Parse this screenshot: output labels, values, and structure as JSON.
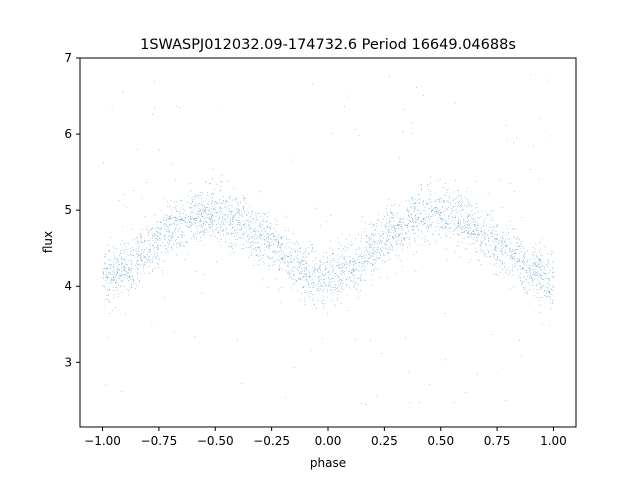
{
  "chart_data": {
    "type": "scatter",
    "title": "1SWASPJ012032.09-174732.6 Period 16649.04688s",
    "xlabel": "phase",
    "ylabel": "flux",
    "xlim": [
      -1.1,
      1.1
    ],
    "ylim": [
      2.15,
      7.0
    ],
    "xticks": [
      -1.0,
      -0.75,
      -0.5,
      -0.25,
      0.0,
      0.25,
      0.5,
      0.75,
      1.0
    ],
    "xtick_labels": [
      "−1.00",
      "−0.75",
      "−0.50",
      "−0.25",
      "0.00",
      "0.25",
      "0.50",
      "0.75",
      "1.00"
    ],
    "yticks": [
      3,
      4,
      5,
      6,
      7
    ],
    "ytick_labels": [
      "3",
      "4",
      "5",
      "6",
      "7"
    ],
    "grid": false,
    "legend": "none",
    "point_color": "#1f77b4",
    "series": [
      {
        "x_range": [
          -1.0,
          1.0
        ],
        "profile": {
          "phase": [
            -1.0,
            -0.9,
            -0.8,
            -0.7,
            -0.6,
            -0.5,
            -0.4,
            -0.3,
            -0.2,
            -0.1,
            0.0,
            0.1,
            0.2,
            0.3,
            0.4,
            0.5,
            0.6,
            0.7,
            0.8,
            0.9,
            1.0
          ],
          "flux": [
            4.08,
            4.25,
            4.5,
            4.78,
            4.93,
            4.95,
            4.85,
            4.65,
            4.45,
            4.2,
            4.08,
            4.25,
            4.5,
            4.78,
            4.93,
            4.95,
            4.85,
            4.65,
            4.45,
            4.2,
            4.08
          ]
        },
        "scatter_sigma": 0.18,
        "outlier_range": [
          2.4,
          6.8
        ]
      }
    ]
  }
}
